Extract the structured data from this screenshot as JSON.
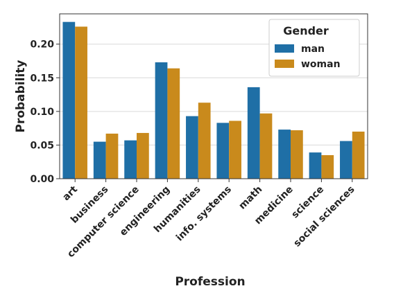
{
  "chart_data": {
    "type": "bar",
    "xlabel": "Profession",
    "ylabel": "Probability",
    "categories": [
      "art",
      "business",
      "computer science",
      "engineering",
      "humanities",
      "info. systems",
      "math",
      "medicine",
      "science",
      "social sciences"
    ],
    "series": [
      {
        "name": "man",
        "color": "#1f6fa6",
        "values": [
          0.233,
          0.055,
          0.057,
          0.173,
          0.093,
          0.083,
          0.136,
          0.073,
          0.039,
          0.056
        ]
      },
      {
        "name": "woman",
        "color": "#c98a1c",
        "values": [
          0.226,
          0.067,
          0.068,
          0.164,
          0.113,
          0.086,
          0.097,
          0.072,
          0.035,
          0.07
        ]
      }
    ],
    "ylim": [
      0,
      0.245
    ],
    "yticks": [
      "0.00",
      "0.05",
      "0.10",
      "0.15",
      "0.20"
    ],
    "ytick_values": [
      0,
      0.05,
      0.1,
      0.15,
      0.2
    ],
    "grid": "horizontal",
    "legend": {
      "title": "Gender",
      "placement": "top-right"
    }
  }
}
